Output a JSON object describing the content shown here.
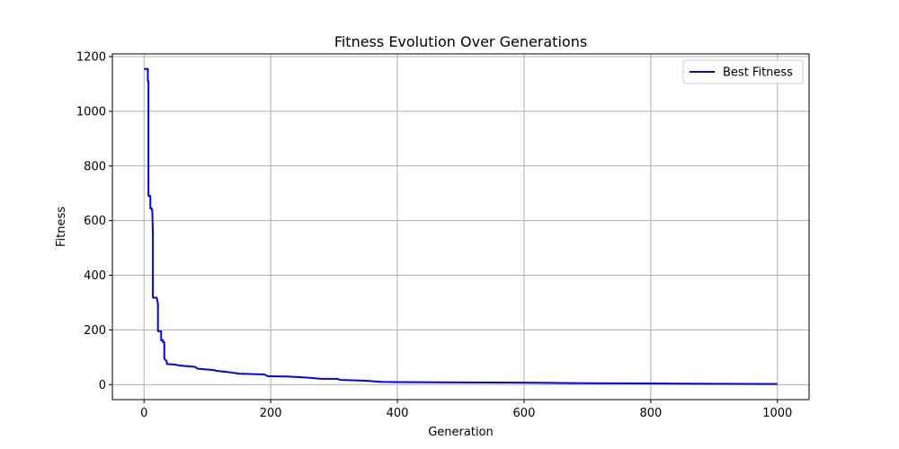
{
  "chart_data": {
    "type": "line",
    "title": "Fitness Evolution Over Generations",
    "xlabel": "Generation",
    "ylabel": "Fitness",
    "xlim": [
      -50,
      1050
    ],
    "ylim": [
      -55,
      1210
    ],
    "xticks": [
      0,
      200,
      400,
      600,
      800,
      1000
    ],
    "yticks": [
      0,
      200,
      400,
      600,
      800,
      1000,
      1200
    ],
    "grid": true,
    "legend_position": "top-right",
    "colors": {
      "series": "#0000ff",
      "grid": "#b0b0b0",
      "axis": "#000000"
    },
    "series": [
      {
        "name": "Best Fitness",
        "color": "#0000ff",
        "points": [
          [
            0,
            1155
          ],
          [
            6,
            1155
          ],
          [
            6,
            1110
          ],
          [
            7,
            1110
          ],
          [
            7,
            690
          ],
          [
            10,
            690
          ],
          [
            10,
            645
          ],
          [
            12,
            645
          ],
          [
            12,
            640
          ],
          [
            13,
            640
          ],
          [
            14,
            550
          ],
          [
            14,
            318
          ],
          [
            20,
            318
          ],
          [
            22,
            295
          ],
          [
            22,
            195
          ],
          [
            27,
            195
          ],
          [
            27,
            162
          ],
          [
            30,
            162
          ],
          [
            30,
            155
          ],
          [
            32,
            155
          ],
          [
            32,
            95
          ],
          [
            36,
            84
          ],
          [
            36,
            75
          ],
          [
            50,
            73
          ],
          [
            55,
            70
          ],
          [
            80,
            65
          ],
          [
            85,
            58
          ],
          [
            110,
            53
          ],
          [
            115,
            50
          ],
          [
            135,
            45
          ],
          [
            150,
            40
          ],
          [
            190,
            37
          ],
          [
            195,
            31
          ],
          [
            230,
            29
          ],
          [
            260,
            25
          ],
          [
            280,
            21
          ],
          [
            305,
            21
          ],
          [
            310,
            17
          ],
          [
            350,
            14
          ],
          [
            375,
            10
          ],
          [
            400,
            9
          ],
          [
            500,
            8
          ],
          [
            600,
            7
          ],
          [
            700,
            5
          ],
          [
            800,
            4
          ],
          [
            900,
            3
          ],
          [
            1000,
            2
          ]
        ]
      }
    ]
  }
}
